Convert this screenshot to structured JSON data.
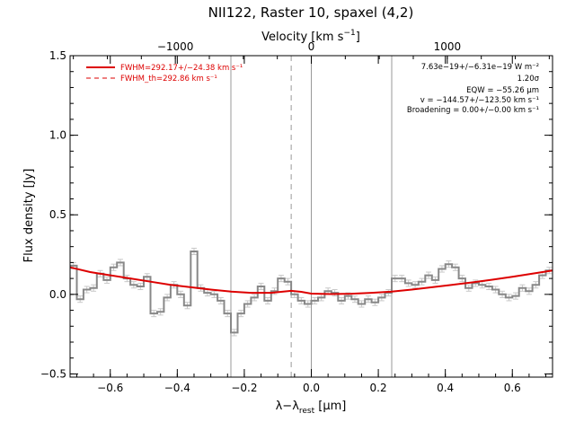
{
  "chart_data": {
    "type": "line",
    "title": "NII122, Raster 10, spaxel (4,2)",
    "xlabel": "λ−λ_rest [μm]",
    "xlabel_parts": {
      "main": "λ−λ",
      "sub": "rest",
      "unit": " [μm]"
    },
    "ylabel": "Flux density [Jy]",
    "top_axis_label": "Velocity [km s⁻¹]",
    "top_axis_label_parts": {
      "main": "Velocity [km s",
      "sup": "−1",
      "end": "]"
    },
    "xlim": [
      -0.72,
      0.72
    ],
    "ylim": [
      -0.52,
      1.5
    ],
    "x_ticks": [
      -0.6,
      -0.4,
      -0.2,
      0.0,
      0.2,
      0.4,
      0.6
    ],
    "x_tick_labels": [
      "−0.6",
      "−0.4",
      "−0.2",
      "0.0",
      "0.2",
      "0.4",
      "0.6"
    ],
    "y_ticks": [
      -0.5,
      0.0,
      0.5,
      1.0,
      1.5
    ],
    "y_tick_labels": [
      "−0.5",
      "0.0",
      "0.5",
      "1.0",
      "1.5"
    ],
    "top_ticks_velocity": [
      -1000,
      0,
      1000
    ],
    "top_tick_labels": [
      "−1000",
      "0",
      "1000"
    ],
    "velocity_per_micron": 2464,
    "vertical_lines": [
      {
        "x": -0.24,
        "style": "solid"
      },
      {
        "x": -0.06,
        "style": "dashed"
      },
      {
        "x": 0.0,
        "style": "solid"
      },
      {
        "x": 0.24,
        "style": "solid"
      }
    ],
    "legend": {
      "placement": "top-left",
      "entries": [
        {
          "label": "FWHM=292.17+/−24.38 km s⁻¹",
          "style": "solid",
          "color": "#dd0000"
        },
        {
          "label": "FWHM_th=292.86 km s⁻¹",
          "style": "dashed",
          "color": "#dd0000"
        }
      ]
    },
    "annotations": [
      "7.63e−19+/−6.31e−19 W m⁻²",
      "1.20σ",
      "EQW = −55.26 μm",
      "v = −144.57+/−123.50 km s⁻¹",
      "Broadening = 0.00+/−0.00 km s⁻¹"
    ],
    "series": [
      {
        "kind": "data-steps",
        "color": "#888888",
        "x": [
          -0.71,
          -0.69,
          -0.67,
          -0.65,
          -0.63,
          -0.61,
          -0.59,
          -0.57,
          -0.55,
          -0.53,
          -0.51,
          -0.49,
          -0.47,
          -0.45,
          -0.43,
          -0.41,
          -0.39,
          -0.37,
          -0.35,
          -0.33,
          -0.31,
          -0.29,
          -0.27,
          -0.25,
          -0.23,
          -0.21,
          -0.19,
          -0.17,
          -0.15,
          -0.13,
          -0.11,
          -0.09,
          -0.07,
          -0.05,
          -0.03,
          -0.01,
          0.01,
          0.03,
          0.05,
          0.07,
          0.09,
          0.11,
          0.13,
          0.15,
          0.17,
          0.19,
          0.21,
          0.23,
          0.25,
          0.27,
          0.29,
          0.31,
          0.33,
          0.35,
          0.37,
          0.39,
          0.41,
          0.43,
          0.45,
          0.47,
          0.49,
          0.51,
          0.53,
          0.55,
          0.57,
          0.59,
          0.61,
          0.63,
          0.65,
          0.67,
          0.69,
          0.71
        ],
        "y": [
          0.18,
          -0.03,
          0.03,
          0.04,
          0.13,
          0.09,
          0.17,
          0.2,
          0.1,
          0.06,
          0.05,
          0.11,
          -0.12,
          -0.11,
          -0.02,
          0.06,
          0.0,
          -0.07,
          0.27,
          0.04,
          0.01,
          0.0,
          -0.04,
          -0.12,
          -0.24,
          -0.12,
          -0.06,
          -0.02,
          0.05,
          -0.04,
          0.02,
          0.1,
          0.08,
          0.0,
          -0.04,
          -0.06,
          -0.04,
          -0.02,
          0.02,
          0.01,
          -0.04,
          -0.01,
          -0.03,
          -0.06,
          -0.03,
          -0.05,
          -0.02,
          0.01,
          0.1,
          0.1,
          0.07,
          0.06,
          0.08,
          0.12,
          0.09,
          0.16,
          0.19,
          0.17,
          0.1,
          0.04,
          0.07,
          0.06,
          0.05,
          0.03,
          0.0,
          -0.02,
          -0.01,
          0.04,
          0.02,
          0.06,
          0.12,
          0.15
        ]
      },
      {
        "kind": "fit",
        "color": "#dd0000",
        "x": [
          -0.72,
          -0.66,
          -0.6,
          -0.54,
          -0.48,
          -0.42,
          -0.36,
          -0.3,
          -0.24,
          -0.18,
          -0.12,
          -0.09,
          -0.06,
          -0.03,
          0.0,
          0.06,
          0.12,
          0.18,
          0.24,
          0.3,
          0.36,
          0.42,
          0.48,
          0.54,
          0.6,
          0.66,
          0.72
        ],
        "y": [
          0.17,
          0.14,
          0.12,
          0.1,
          0.08,
          0.06,
          0.045,
          0.03,
          0.018,
          0.01,
          0.01,
          0.016,
          0.022,
          0.016,
          0.005,
          0.002,
          0.004,
          0.01,
          0.018,
          0.03,
          0.045,
          0.06,
          0.075,
          0.092,
          0.11,
          0.13,
          0.15
        ]
      }
    ]
  }
}
